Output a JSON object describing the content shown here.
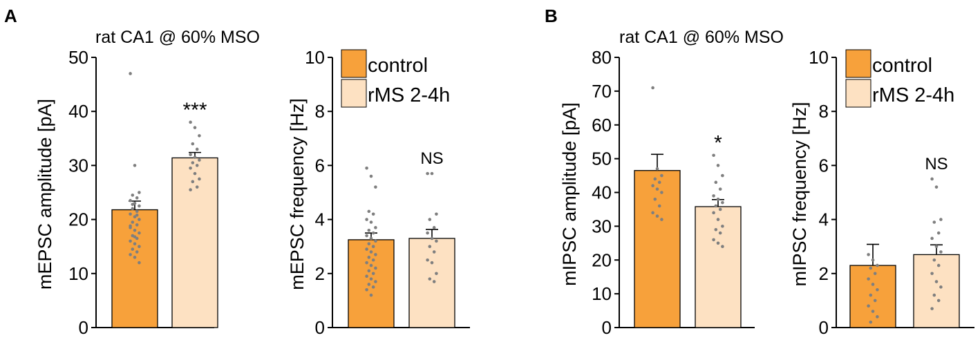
{
  "panels": {
    "A": {
      "label": "A",
      "title": "rat CA1 @ 60% MSO"
    },
    "B": {
      "label": "B",
      "title": "rat CA1 @ 60% MSO"
    }
  },
  "legend": {
    "entries": [
      "control",
      "rMS 2-4h"
    ]
  },
  "colors": {
    "control": "#F7A13B",
    "rms": "#FDE1C2",
    "dots": "#7f7f7f",
    "edge": "#000000"
  },
  "chart_data": [
    {
      "id": "A1",
      "panel": "A",
      "type": "bar",
      "categories": [
        "control",
        "rMS 2-4h"
      ],
      "values": [
        21.8,
        31.4
      ],
      "sem": [
        1.6,
        1.0
      ],
      "ylabel": "mEPSC amplitude [pA]",
      "ylim": [
        0,
        50
      ],
      "yticks": [
        0,
        10,
        20,
        30,
        40,
        50
      ],
      "significance": [
        "",
        "***"
      ],
      "points": [
        [
          47,
          30,
          25,
          24.5,
          24,
          23.5,
          23,
          22.5,
          22,
          21.5,
          21,
          20.5,
          20,
          19.5,
          19,
          18.5,
          18,
          17.5,
          17,
          16.5,
          16,
          15.5,
          15,
          14.5,
          14,
          13.5,
          13,
          12,
          22.8,
          20.8,
          18.8,
          16.8
        ],
        [
          38,
          37,
          35.5,
          34,
          33,
          32,
          31.5,
          31,
          30.5,
          30,
          29.5,
          28.5,
          27.5,
          27,
          26,
          25.5
        ]
      ],
      "legend": false
    },
    {
      "id": "A2",
      "panel": "A",
      "type": "bar",
      "categories": [
        "control",
        "rMS 2-4h"
      ],
      "values": [
        3.25,
        3.3
      ],
      "sem": [
        0.25,
        0.33
      ],
      "ylabel": "mEPSC frequency [Hz]",
      "ylim": [
        0,
        10
      ],
      "yticks": [
        0,
        2,
        4,
        6,
        8,
        10
      ],
      "significance": [
        "",
        "NS"
      ],
      "points": [
        [
          5.9,
          5.6,
          5.2,
          4.3,
          4.2,
          4.0,
          3.9,
          3.7,
          3.6,
          3.5,
          3.4,
          3.3,
          3.2,
          3.1,
          3.0,
          2.9,
          2.8,
          2.7,
          2.6,
          2.5,
          2.4,
          2.3,
          2.2,
          2.1,
          2.0,
          1.9,
          1.8,
          1.7,
          1.6,
          1.5,
          1.4,
          1.2
        ],
        [
          5.7,
          5.7,
          4.2,
          4.0,
          3.7,
          3.5,
          3.3,
          3.2,
          3.0,
          2.8,
          2.5,
          2.4,
          2.0,
          1.8,
          1.7
        ]
      ],
      "legend": true
    },
    {
      "id": "B1",
      "panel": "B",
      "type": "bar",
      "categories": [
        "control",
        "rMS 2-4h"
      ],
      "values": [
        46.5,
        35.8
      ],
      "sem": [
        4.8,
        2.1
      ],
      "ylabel": "mIPSC amplitude [pA]",
      "ylim": [
        0,
        80
      ],
      "yticks": [
        0,
        10,
        20,
        30,
        40,
        50,
        60,
        70,
        80
      ],
      "significance": [
        "",
        "*"
      ],
      "points": [
        [
          71,
          47,
          45,
          44,
          43,
          42,
          41,
          40,
          38,
          36,
          34,
          33,
          32
        ],
        [
          51,
          48,
          45,
          43,
          41,
          39,
          38,
          37,
          36,
          35,
          34,
          32,
          30,
          29,
          28,
          26,
          25,
          24
        ]
      ],
      "legend": false
    },
    {
      "id": "B2",
      "panel": "B",
      "type": "bar",
      "categories": [
        "control",
        "rMS 2-4h"
      ],
      "values": [
        2.3,
        2.7
      ],
      "sem": [
        0.78,
        0.36
      ],
      "ylabel": "mIPSC frequency [Hz]",
      "ylim": [
        0,
        10
      ],
      "yticks": [
        0,
        2,
        4,
        6,
        8,
        10
      ],
      "significance": [
        "",
        "NS"
      ],
      "points": [
        [
          2.7,
          2.5,
          2.3,
          2.2,
          2.0,
          1.8,
          1.6,
          1.4,
          1.2,
          1.0,
          0.8,
          0.6,
          0.4,
          0.2
        ],
        [
          5.5,
          5.2,
          4.0,
          3.9,
          3.5,
          3.3,
          3.0,
          2.8,
          2.5,
          2.3,
          2.0,
          1.7,
          1.5,
          1.2,
          1.0,
          0.7
        ]
      ],
      "legend": true
    }
  ]
}
